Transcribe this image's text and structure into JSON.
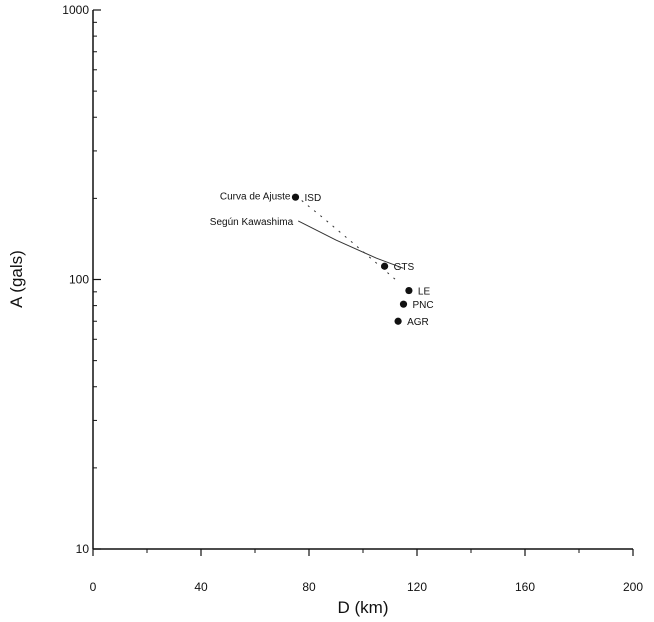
{
  "chart_data": {
    "type": "scatter",
    "xlabel": "D (km)",
    "ylabel": "A (gals)",
    "xlim": [
      0,
      200
    ],
    "ylim": [
      10,
      1000
    ],
    "yscale": "log",
    "grid": false,
    "x_ticks": [
      0,
      40,
      80,
      120,
      160,
      200
    ],
    "x_tick_labels": [
      "0",
      "40",
      "80",
      "120",
      "160",
      "200"
    ],
    "y_ticks": [
      10,
      100,
      1000
    ],
    "y_tick_labels": [
      "10",
      "100",
      "1000"
    ],
    "points": [
      {
        "label": "ISD",
        "x": 75,
        "y": 202
      },
      {
        "label": "GTS",
        "x": 108,
        "y": 112
      },
      {
        "label": "LE",
        "x": 117,
        "y": 91
      },
      {
        "label": "PNC",
        "x": 115,
        "y": 81
      },
      {
        "label": "AGR",
        "x": 113,
        "y": 70
      }
    ],
    "curves": [
      {
        "label": "Curva de Ajuste",
        "style": "dotted",
        "x": [
          75,
          85,
          95,
          105,
          112
        ],
        "y": [
          205,
          170,
          140,
          115,
          100
        ]
      },
      {
        "label": "Según Kawashima",
        "style": "solid",
        "x": [
          76,
          90,
          105,
          115
        ],
        "y": [
          165,
          140,
          120,
          110
        ]
      }
    ]
  }
}
